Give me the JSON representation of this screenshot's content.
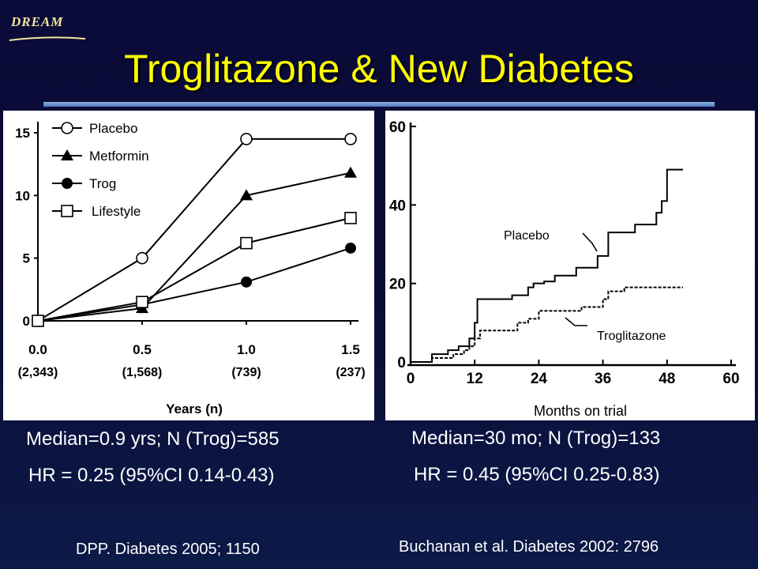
{
  "header": {
    "logo_text": "DREAM",
    "title": "Troglitazone & New Diabetes"
  },
  "left_panel": {
    "stat_line1": "Median=0.9 yrs; N (Trog)=585",
    "stat_line2": "HR = 0.25 (95%CI 0.14-0.43)",
    "citation": "DPP. Diabetes 2005; 1150"
  },
  "right_panel": {
    "stat_line1": "Median=30 mo; N (Trog)=133",
    "stat_line2": "HR = 0.45 (95%CI 0.25-0.83)",
    "citation": "Buchanan et al. Diabetes 2002: 2796"
  },
  "colors": {
    "background": "#0b0b3a",
    "title": "#ffff00",
    "text": "#ffffff",
    "rule": "#6f9ad6"
  },
  "chart_data": [
    {
      "type": "line",
      "xlabel": "Years (n)",
      "ylabel": "",
      "categories": [
        "0.0",
        "0.5",
        "1.0",
        "1.5"
      ],
      "x_sublabels": [
        "(2,343)",
        "(1,568)",
        "(739)",
        "(237)"
      ],
      "yticks": [
        "0",
        "5",
        "10",
        "15"
      ],
      "ylim": [
        0,
        15
      ],
      "legend_position": "top-left",
      "series": [
        {
          "name": "Placebo",
          "marker": "open-circle",
          "values": [
            0,
            5,
            14.5,
            14.5
          ]
        },
        {
          "name": "Metformin",
          "marker": "filled-triangle",
          "values": [
            0,
            1,
            10,
            11.8
          ]
        },
        {
          "name": "Trog",
          "marker": "filled-circle",
          "values": [
            0,
            1.3,
            3.1,
            5.8
          ]
        },
        {
          "name": "Lifestyle",
          "marker": "open-square",
          "values": [
            0,
            1.5,
            6.2,
            8.2
          ]
        }
      ]
    },
    {
      "type": "line",
      "xlabel": "Months on trial",
      "ylabel": "",
      "xticks": [
        "0",
        "12",
        "24",
        "36",
        "48",
        "60"
      ],
      "yticks": [
        "0",
        "20",
        "40",
        "60"
      ],
      "xlim": [
        0,
        60
      ],
      "ylim": [
        0,
        60
      ],
      "step": true,
      "series": [
        {
          "name": "Placebo",
          "style": "solid",
          "x": [
            0,
            4,
            7,
            9,
            11,
            12,
            12.5,
            18,
            19,
            22,
            23,
            25,
            27,
            30,
            31,
            34,
            35,
            37,
            41,
            42,
            44,
            46,
            47,
            48,
            51
          ],
          "y": [
            0,
            2,
            3,
            4,
            6,
            10,
            16,
            16,
            17,
            19,
            20,
            20.5,
            22,
            22,
            24,
            24,
            27,
            33,
            33,
            35,
            35,
            38,
            41,
            49,
            49
          ]
        },
        {
          "name": "Troglitazone",
          "style": "dashed",
          "x": [
            0,
            4,
            8,
            10,
            11,
            12,
            13,
            17,
            20,
            22,
            24,
            30,
            32,
            35,
            36,
            37,
            40,
            51
          ],
          "y": [
            0,
            1,
            2,
            3,
            4,
            6,
            8,
            8,
            10,
            11,
            13,
            13,
            14,
            14,
            16,
            18,
            19,
            19
          ]
        }
      ]
    }
  ]
}
